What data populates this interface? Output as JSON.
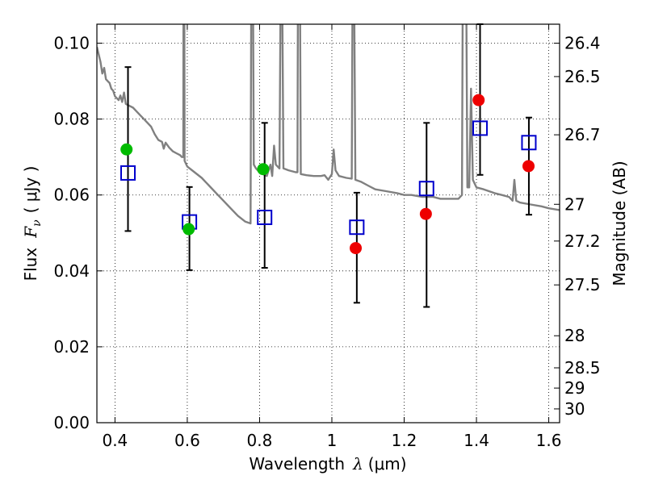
{
  "chart_data": {
    "type": "scatter",
    "xlabel": {
      "text": "Wavelength",
      "symbol": "λ",
      "unit": "(μm)"
    },
    "ylabel": {
      "text": "Flux",
      "symbol": "F",
      "sub": "ν",
      "unit": "( μJy )"
    },
    "y2label": "Magnitude (AB)",
    "xlim": [
      0.35,
      1.63
    ],
    "ylim": [
      0.0,
      0.105
    ],
    "grid": true,
    "x_ticks": [
      {
        "v": 0.4,
        "label": "0.4"
      },
      {
        "v": 0.6,
        "label": "0.6"
      },
      {
        "v": 0.8,
        "label": "0.8"
      },
      {
        "v": 1.0,
        "label": "1"
      },
      {
        "v": 1.2,
        "label": "1.2"
      },
      {
        "v": 1.4,
        "label": "1.4"
      },
      {
        "v": 1.6,
        "label": "1.6"
      }
    ],
    "y_ticks": [
      {
        "v": 0.0,
        "label": "0.00"
      },
      {
        "v": 0.02,
        "label": "0.02"
      },
      {
        "v": 0.04,
        "label": "0.04"
      },
      {
        "v": 0.06,
        "label": "0.06"
      },
      {
        "v": 0.08,
        "label": "0.08"
      },
      {
        "v": 0.1,
        "label": "0.10"
      }
    ],
    "y2_ticks": [
      {
        "mag": 26.4,
        "label": "26.4"
      },
      {
        "mag": 26.5,
        "label": "26.5"
      },
      {
        "mag": 26.7,
        "label": "26.7"
      },
      {
        "mag": 27.0,
        "label": "27"
      },
      {
        "mag": 27.2,
        "label": "27.2"
      },
      {
        "mag": 27.5,
        "label": "27.5"
      },
      {
        "mag": 28.0,
        "label": "28"
      },
      {
        "mag": 28.5,
        "label": "28.5"
      },
      {
        "mag": 29.0,
        "label": "29"
      },
      {
        "mag": 30.0,
        "label": "30"
      }
    ],
    "series": [
      {
        "kind": "squares_with_errorbars",
        "color": "#0000cc",
        "points": [
          {
            "x": 0.436,
            "y": 0.0658,
            "ylo": 0.0505,
            "yhi": 0.0937
          },
          {
            "x": 0.606,
            "y": 0.0529,
            "ylo": 0.0402,
            "yhi": 0.0621
          },
          {
            "x": 0.814,
            "y": 0.0541,
            "ylo": 0.0408,
            "yhi": 0.079
          },
          {
            "x": 1.069,
            "y": 0.0515,
            "ylo": 0.0316,
            "yhi": 0.0606
          },
          {
            "x": 1.262,
            "y": 0.0617,
            "ylo": 0.0305,
            "yhi": 0.079
          },
          {
            "x": 1.41,
            "y": 0.0776,
            "ylo": 0.0653,
            "yhi": 0.107
          },
          {
            "x": 1.545,
            "y": 0.0738,
            "ylo": 0.0548,
            "yhi": 0.0804
          }
        ]
      },
      {
        "kind": "circles",
        "color": "#00bb00",
        "points": [
          {
            "x": 0.432,
            "y": 0.072
          },
          {
            "x": 0.604,
            "y": 0.051
          },
          {
            "x": 0.81,
            "y": 0.0668
          }
        ]
      },
      {
        "kind": "circles",
        "color": "#ee0000",
        "points": [
          {
            "x": 1.066,
            "y": 0.046
          },
          {
            "x": 1.26,
            "y": 0.055
          },
          {
            "x": 1.406,
            "y": 0.085
          },
          {
            "x": 1.544,
            "y": 0.0676
          }
        ]
      },
      {
        "kind": "line",
        "color": "#808080",
        "points": [
          [
            0.35,
            0.099
          ],
          [
            0.36,
            0.095
          ],
          [
            0.365,
            0.092
          ],
          [
            0.37,
            0.0935
          ],
          [
            0.375,
            0.0905
          ],
          [
            0.38,
            0.09
          ],
          [
            0.385,
            0.0895
          ],
          [
            0.39,
            0.088
          ],
          [
            0.395,
            0.0875
          ],
          [
            0.4,
            0.086
          ],
          [
            0.405,
            0.0855
          ],
          [
            0.41,
            0.085
          ],
          [
            0.415,
            0.0862
          ],
          [
            0.42,
            0.0845
          ],
          [
            0.425,
            0.087
          ],
          [
            0.43,
            0.084
          ],
          [
            0.44,
            0.0835
          ],
          [
            0.45,
            0.083
          ],
          [
            0.46,
            0.082
          ],
          [
            0.47,
            0.081
          ],
          [
            0.48,
            0.08
          ],
          [
            0.49,
            0.079
          ],
          [
            0.5,
            0.078
          ],
          [
            0.51,
            0.076
          ],
          [
            0.52,
            0.0745
          ],
          [
            0.53,
            0.074
          ],
          [
            0.535,
            0.0722
          ],
          [
            0.54,
            0.0738
          ],
          [
            0.55,
            0.0725
          ],
          [
            0.56,
            0.0715
          ],
          [
            0.57,
            0.071
          ],
          [
            0.58,
            0.0705
          ],
          [
            0.585,
            0.07
          ],
          [
            0.589,
            0.07
          ],
          [
            0.5895,
            0.11
          ],
          [
            0.592,
            0.11
          ],
          [
            0.5925,
            0.069
          ],
          [
            0.6,
            0.0675
          ],
          [
            0.62,
            0.066
          ],
          [
            0.64,
            0.0645
          ],
          [
            0.66,
            0.0625
          ],
          [
            0.68,
            0.0605
          ],
          [
            0.7,
            0.0585
          ],
          [
            0.72,
            0.0565
          ],
          [
            0.74,
            0.0545
          ],
          [
            0.76,
            0.053
          ],
          [
            0.775,
            0.0525
          ],
          [
            0.777,
            0.11
          ],
          [
            0.782,
            0.11
          ],
          [
            0.784,
            0.068
          ],
          [
            0.79,
            0.067
          ],
          [
            0.8,
            0.066
          ],
          [
            0.82,
            0.065
          ],
          [
            0.83,
            0.068
          ],
          [
            0.835,
            0.065
          ],
          [
            0.84,
            0.073
          ],
          [
            0.845,
            0.068
          ],
          [
            0.85,
            0.0675
          ],
          [
            0.855,
            0.067
          ],
          [
            0.858,
            0.11
          ],
          [
            0.863,
            0.11
          ],
          [
            0.866,
            0.067
          ],
          [
            0.88,
            0.0665
          ],
          [
            0.9,
            0.066
          ],
          [
            0.905,
            0.066
          ],
          [
            0.906,
            0.11
          ],
          [
            0.912,
            0.11
          ],
          [
            0.914,
            0.0655
          ],
          [
            0.93,
            0.0652
          ],
          [
            0.95,
            0.065
          ],
          [
            0.97,
            0.065
          ],
          [
            0.98,
            0.0652
          ],
          [
            0.99,
            0.064
          ],
          [
            1.0,
            0.0655
          ],
          [
            1.005,
            0.072
          ],
          [
            1.01,
            0.0665
          ],
          [
            1.02,
            0.065
          ],
          [
            1.04,
            0.0645
          ],
          [
            1.055,
            0.0643
          ],
          [
            1.057,
            0.11
          ],
          [
            1.062,
            0.11
          ],
          [
            1.065,
            0.064
          ],
          [
            1.08,
            0.0635
          ],
          [
            1.1,
            0.0625
          ],
          [
            1.12,
            0.0615
          ],
          [
            1.15,
            0.061
          ],
          [
            1.18,
            0.0605
          ],
          [
            1.2,
            0.06
          ],
          [
            1.22,
            0.06
          ],
          [
            1.25,
            0.0595
          ],
          [
            1.28,
            0.0595
          ],
          [
            1.3,
            0.059
          ],
          [
            1.32,
            0.059
          ],
          [
            1.35,
            0.059
          ],
          [
            1.36,
            0.06
          ],
          [
            1.362,
            0.11
          ],
          [
            1.372,
            0.11
          ],
          [
            1.375,
            0.062
          ],
          [
            1.38,
            0.062
          ],
          [
            1.385,
            0.088
          ],
          [
            1.39,
            0.064
          ],
          [
            1.4,
            0.062
          ],
          [
            1.42,
            0.0615
          ],
          [
            1.45,
            0.0605
          ],
          [
            1.47,
            0.06
          ],
          [
            1.49,
            0.0595
          ],
          [
            1.5,
            0.0585
          ],
          [
            1.505,
            0.064
          ],
          [
            1.51,
            0.0585
          ],
          [
            1.52,
            0.058
          ],
          [
            1.55,
            0.0575
          ],
          [
            1.58,
            0.057
          ],
          [
            1.6,
            0.0565
          ],
          [
            1.63,
            0.056
          ]
        ]
      }
    ]
  }
}
